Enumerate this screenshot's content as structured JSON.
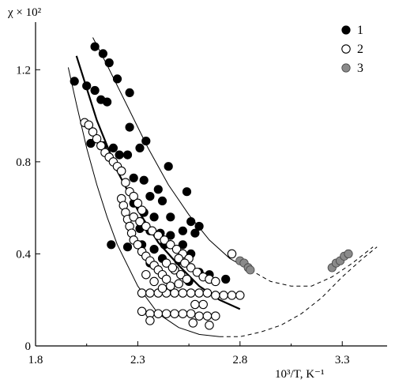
{
  "chart_data": {
    "type": "scatter",
    "title": "",
    "ylabel": "χ × 10²",
    "xlabel": "10³/T, K⁻¹",
    "xlim": [
      1.8,
      3.5
    ],
    "ylim": [
      0,
      1.4
    ],
    "xticks": [
      {
        "value": 1.8,
        "label": "1.8"
      },
      {
        "value": 2.3,
        "label": "2.3"
      },
      {
        "value": 2.8,
        "label": "2.8"
      },
      {
        "value": 3.3,
        "label": "3.3"
      }
    ],
    "yticks": [
      {
        "value": 0,
        "label": "0"
      },
      {
        "value": 0.4,
        "label": "0.4"
      },
      {
        "value": 0.8,
        "label": "0.8"
      },
      {
        "value": 1.2,
        "label": "1.2"
      }
    ],
    "legend_position": "top-right",
    "grid": false,
    "series": [
      {
        "name": "1",
        "marker": "filled",
        "color": "#000000",
        "points": [
          [
            2.09,
            1.3
          ],
          [
            2.13,
            1.27
          ],
          [
            2.16,
            1.23
          ],
          [
            2.2,
            1.16
          ],
          [
            2.26,
            1.1
          ],
          [
            1.99,
            1.15
          ],
          [
            2.05,
            1.13
          ],
          [
            2.09,
            1.11
          ],
          [
            2.12,
            1.07
          ],
          [
            2.15,
            1.06
          ],
          [
            2.26,
            0.95
          ],
          [
            2.34,
            0.89
          ],
          [
            2.45,
            0.78
          ],
          [
            2.54,
            0.67
          ],
          [
            2.6,
            0.52
          ],
          [
            2.07,
            0.88
          ],
          [
            2.13,
            0.87
          ],
          [
            2.18,
            0.86
          ],
          [
            2.21,
            0.83
          ],
          [
            2.25,
            0.83
          ],
          [
            2.31,
            0.86
          ],
          [
            2.28,
            0.73
          ],
          [
            2.33,
            0.72
          ],
          [
            2.4,
            0.68
          ],
          [
            2.36,
            0.65
          ],
          [
            2.42,
            0.63
          ],
          [
            2.28,
            0.62
          ],
          [
            2.33,
            0.58
          ],
          [
            2.38,
            0.56
          ],
          [
            2.46,
            0.56
          ],
          [
            2.56,
            0.54
          ],
          [
            2.31,
            0.51
          ],
          [
            2.36,
            0.5
          ],
          [
            2.41,
            0.49
          ],
          [
            2.46,
            0.48
          ],
          [
            2.52,
            0.5
          ],
          [
            2.58,
            0.49
          ],
          [
            2.17,
            0.44
          ],
          [
            2.25,
            0.43
          ],
          [
            2.32,
            0.44
          ],
          [
            2.38,
            0.42
          ],
          [
            2.43,
            0.44
          ],
          [
            2.52,
            0.44
          ],
          [
            2.36,
            0.36
          ],
          [
            2.42,
            0.38
          ],
          [
            2.5,
            0.37
          ],
          [
            2.56,
            0.4
          ],
          [
            2.6,
            0.32
          ],
          [
            2.65,
            0.31
          ],
          [
            2.73,
            0.29
          ],
          [
            2.55,
            0.28
          ]
        ]
      },
      {
        "name": "2",
        "marker": "open",
        "color": "#000000",
        "points": [
          [
            2.04,
            0.97
          ],
          [
            2.06,
            0.96
          ],
          [
            2.08,
            0.93
          ],
          [
            2.1,
            0.9
          ],
          [
            2.12,
            0.87
          ],
          [
            2.14,
            0.84
          ],
          [
            2.16,
            0.82
          ],
          [
            2.18,
            0.8
          ],
          [
            2.2,
            0.78
          ],
          [
            2.22,
            0.76
          ],
          [
            2.24,
            0.71
          ],
          [
            2.26,
            0.67
          ],
          [
            2.28,
            0.65
          ],
          [
            2.3,
            0.62
          ],
          [
            2.32,
            0.59
          ],
          [
            2.22,
            0.64
          ],
          [
            2.23,
            0.61
          ],
          [
            2.24,
            0.58
          ],
          [
            2.25,
            0.55
          ],
          [
            2.26,
            0.52
          ],
          [
            2.27,
            0.49
          ],
          [
            2.28,
            0.46
          ],
          [
            2.3,
            0.44
          ],
          [
            2.32,
            0.41
          ],
          [
            2.34,
            0.39
          ],
          [
            2.36,
            0.37
          ],
          [
            2.38,
            0.35
          ],
          [
            2.4,
            0.33
          ],
          [
            2.42,
            0.31
          ],
          [
            2.44,
            0.29
          ],
          [
            2.28,
            0.56
          ],
          [
            2.31,
            0.54
          ],
          [
            2.34,
            0.52
          ],
          [
            2.37,
            0.5
          ],
          [
            2.4,
            0.48
          ],
          [
            2.43,
            0.46
          ],
          [
            2.46,
            0.44
          ],
          [
            2.49,
            0.42
          ],
          [
            2.52,
            0.4
          ],
          [
            2.55,
            0.38
          ],
          [
            2.5,
            0.38
          ],
          [
            2.53,
            0.36
          ],
          [
            2.56,
            0.34
          ],
          [
            2.59,
            0.32
          ],
          [
            2.62,
            0.3
          ],
          [
            2.65,
            0.29
          ],
          [
            2.68,
            0.28
          ],
          [
            2.48,
            0.33
          ],
          [
            2.51,
            0.31
          ],
          [
            2.54,
            0.29
          ],
          [
            2.32,
            0.23
          ],
          [
            2.36,
            0.23
          ],
          [
            2.4,
            0.23
          ],
          [
            2.44,
            0.23
          ],
          [
            2.48,
            0.23
          ],
          [
            2.52,
            0.23
          ],
          [
            2.56,
            0.23
          ],
          [
            2.6,
            0.23
          ],
          [
            2.64,
            0.23
          ],
          [
            2.68,
            0.22
          ],
          [
            2.72,
            0.22
          ],
          [
            2.76,
            0.22
          ],
          [
            2.8,
            0.22
          ],
          [
            2.32,
            0.15
          ],
          [
            2.36,
            0.14
          ],
          [
            2.4,
            0.14
          ],
          [
            2.44,
            0.14
          ],
          [
            2.48,
            0.14
          ],
          [
            2.52,
            0.14
          ],
          [
            2.56,
            0.14
          ],
          [
            2.6,
            0.13
          ],
          [
            2.64,
            0.13
          ],
          [
            2.68,
            0.13
          ],
          [
            2.58,
            0.18
          ],
          [
            2.62,
            0.18
          ],
          [
            2.65,
            0.09
          ],
          [
            2.57,
            0.1
          ],
          [
            2.34,
            0.31
          ],
          [
            2.38,
            0.28
          ],
          [
            2.42,
            0.25
          ],
          [
            2.46,
            0.26
          ],
          [
            2.5,
            0.27
          ],
          [
            2.44,
            0.36
          ],
          [
            2.47,
            0.34
          ],
          [
            2.36,
            0.11
          ],
          [
            2.76,
            0.4
          ]
        ]
      },
      {
        "name": "3",
        "marker": "gray",
        "color": "#8a8a8a",
        "points": [
          [
            2.8,
            0.37
          ],
          [
            2.82,
            0.36
          ],
          [
            2.84,
            0.34
          ],
          [
            2.85,
            0.33
          ],
          [
            3.25,
            0.34
          ],
          [
            3.27,
            0.36
          ],
          [
            3.29,
            0.37
          ],
          [
            3.31,
            0.39
          ],
          [
            3.33,
            0.4
          ]
        ]
      }
    ],
    "curves": [
      {
        "style": "solid-thin",
        "points": [
          [
            2.08,
            1.34
          ],
          [
            2.15,
            1.22
          ],
          [
            2.25,
            1.04
          ],
          [
            2.35,
            0.86
          ],
          [
            2.45,
            0.7
          ],
          [
            2.55,
            0.57
          ],
          [
            2.65,
            0.46
          ],
          [
            2.75,
            0.38
          ],
          [
            2.85,
            0.33
          ]
        ]
      },
      {
        "style": "dashed",
        "points": [
          [
            2.85,
            0.33
          ],
          [
            2.95,
            0.28
          ],
          [
            3.05,
            0.26
          ],
          [
            3.15,
            0.26
          ],
          [
            3.25,
            0.3
          ],
          [
            3.35,
            0.36
          ],
          [
            3.45,
            0.43
          ]
        ]
      },
      {
        "style": "solid-thick",
        "points": [
          [
            2.0,
            1.26
          ],
          [
            2.05,
            1.12
          ],
          [
            2.1,
            0.98
          ],
          [
            2.15,
            0.87
          ],
          [
            2.2,
            0.76
          ],
          [
            2.3,
            0.59
          ],
          [
            2.4,
            0.45
          ],
          [
            2.5,
            0.35
          ],
          [
            2.6,
            0.26
          ],
          [
            2.7,
            0.2
          ],
          [
            2.8,
            0.16
          ]
        ]
      },
      {
        "style": "solid-thin",
        "points": [
          [
            1.96,
            1.21
          ],
          [
            2.0,
            1.05
          ],
          [
            2.05,
            0.86
          ],
          [
            2.1,
            0.7
          ],
          [
            2.15,
            0.56
          ],
          [
            2.2,
            0.44
          ],
          [
            2.3,
            0.26
          ],
          [
            2.4,
            0.14
          ],
          [
            2.5,
            0.08
          ],
          [
            2.6,
            0.05
          ],
          [
            2.7,
            0.04
          ]
        ]
      },
      {
        "style": "dashed",
        "points": [
          [
            2.7,
            0.04
          ],
          [
            2.8,
            0.04
          ],
          [
            2.9,
            0.06
          ],
          [
            3.0,
            0.09
          ],
          [
            3.1,
            0.14
          ],
          [
            3.2,
            0.21
          ],
          [
            3.3,
            0.3
          ],
          [
            3.4,
            0.38
          ],
          [
            3.47,
            0.43
          ]
        ]
      }
    ]
  }
}
